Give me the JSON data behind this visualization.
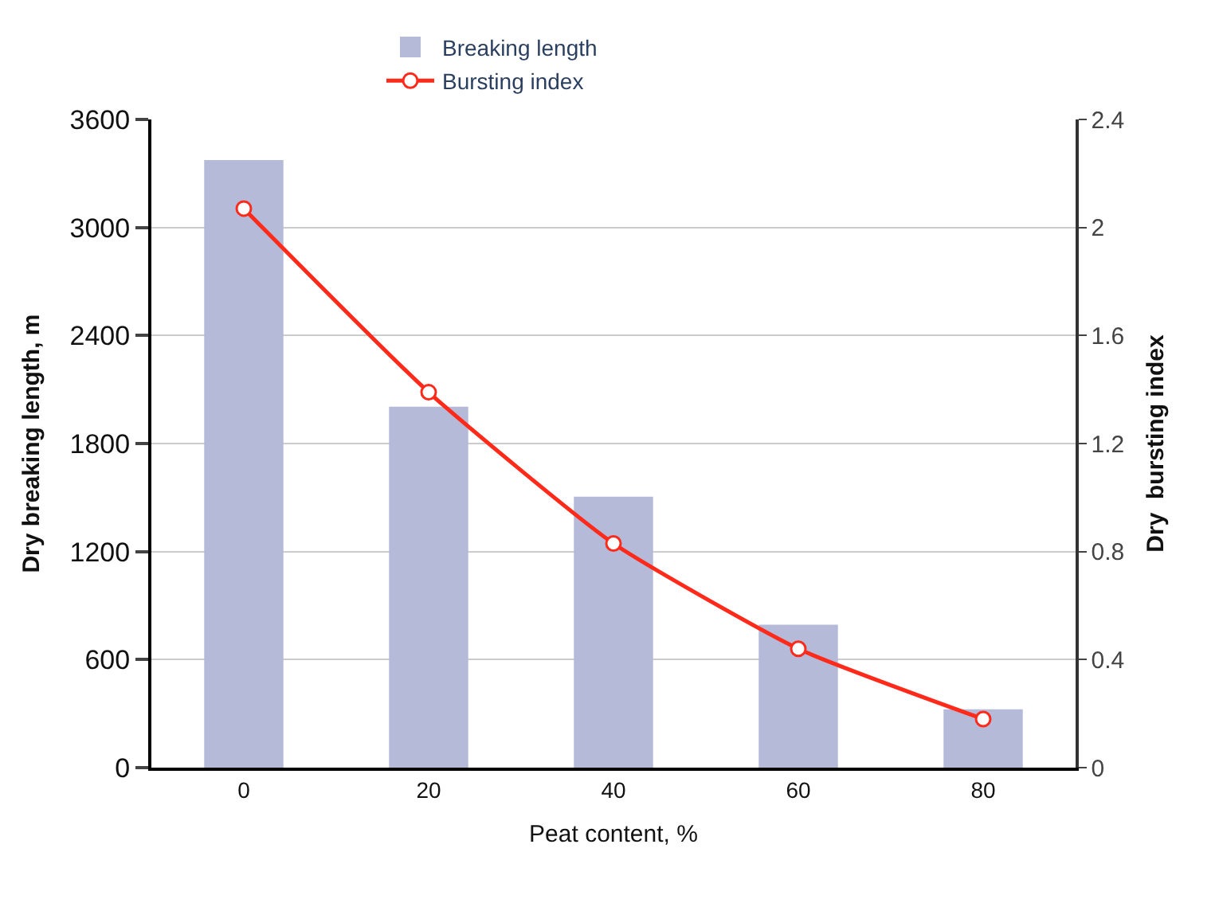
{
  "chart_data": {
    "type": "bar",
    "categories": [
      "0",
      "20",
      "40",
      "60",
      "80"
    ],
    "xlabel": "Peat content, %",
    "ylabel": "Dry breaking length, m",
    "y2label": "Dry  bursting index",
    "series": [
      {
        "name": "Breaking length",
        "color": "#b4bad8",
        "values": [
          3370,
          2000,
          1500,
          790,
          320
        ]
      },
      {
        "name": "Bursting index",
        "type": "line",
        "axis": "y2",
        "color": "#ff2a1a",
        "marker": "circle",
        "line_style": "solid",
        "values": [
          2.07,
          1.39,
          0.83,
          0.44,
          0.18
        ]
      }
    ],
    "ylim": [
      0,
      3600
    ],
    "yticks": [
      0,
      600,
      1200,
      1800,
      2400,
      3000,
      3600
    ],
    "y2lim": [
      0,
      2.4
    ],
    "y2ticks": [
      0,
      0.4,
      0.8,
      1.2,
      1.6,
      2,
      2.4
    ],
    "grid": "y",
    "legend": "top"
  }
}
